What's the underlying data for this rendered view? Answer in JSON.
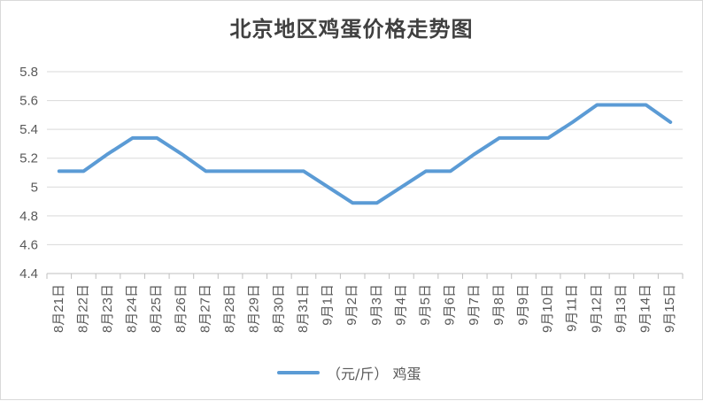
{
  "chart_data": {
    "type": "line",
    "title": "北京地区鸡蛋价格走势图",
    "categories": [
      "8月21日",
      "8月22日",
      "8月23日",
      "8月24日",
      "8月25日",
      "8月26日",
      "8月27日",
      "8月28日",
      "8月29日",
      "8月30日",
      "8月31日",
      "9月1日",
      "9月2日",
      "9月3日",
      "9月4日",
      "9月5日",
      "9月6日",
      "9月7日",
      "9月8日",
      "9月9日",
      "9月10日",
      "9月11日",
      "9月12日",
      "9月13日",
      "9月14日",
      "9月15日"
    ],
    "series": [
      {
        "name": "（元/斤） 鸡蛋",
        "color": "#5b9bd5",
        "values": [
          5.11,
          5.11,
          5.23,
          5.34,
          5.34,
          5.23,
          5.11,
          5.11,
          5.11,
          5.11,
          5.11,
          5.0,
          4.89,
          4.89,
          5.0,
          5.11,
          5.11,
          5.23,
          5.34,
          5.34,
          5.34,
          5.45,
          5.57,
          5.57,
          5.57,
          5.45
        ]
      }
    ],
    "yticks": [
      "4.4",
      "4.6",
      "4.8",
      "5",
      "5.2",
      "5.4",
      "5.6",
      "5.8"
    ],
    "ylim": [
      4.4,
      5.8
    ],
    "grid": true,
    "legend": "bottom"
  }
}
